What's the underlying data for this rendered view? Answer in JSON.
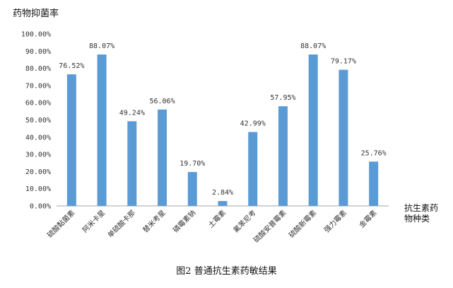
{
  "chart_data": {
    "type": "bar",
    "ylabel": "药物抑菌率",
    "xlabel_lines": [
      "抗生素药",
      "物种类"
    ],
    "categories": [
      "硫酸黏菌素",
      "阿米卡星",
      "单硫酸卡那",
      "替米考星",
      "磷霉素钠",
      "土霉素",
      "氟苯尼考",
      "硫酸安普霉素",
      "硫酸新霉素",
      "强力霉素",
      "金霉素"
    ],
    "values": [
      76.52,
      88.07,
      49.24,
      56.06,
      19.7,
      2.84,
      42.99,
      57.95,
      88.07,
      79.17,
      25.76
    ],
    "value_labels": [
      "76.52%",
      "88.07%",
      "49.24%",
      "56.06%",
      "19.70%",
      "2.84%",
      "42.99%",
      "57.95%",
      "88.07%",
      "79.17%",
      "25.76%"
    ],
    "yticks": [
      "0.00%",
      "10.00%",
      "20.00%",
      "30.00%",
      "40.00%",
      "50.00%",
      "60.00%",
      "70.00%",
      "80.00%",
      "90.00%",
      "100.00%"
    ],
    "ylim": [
      0,
      100
    ],
    "grid": false,
    "bar_color": "#5b9bd5",
    "axis_color": "#a6a6a6"
  },
  "caption": "图2 普通抗生素药敏结果"
}
